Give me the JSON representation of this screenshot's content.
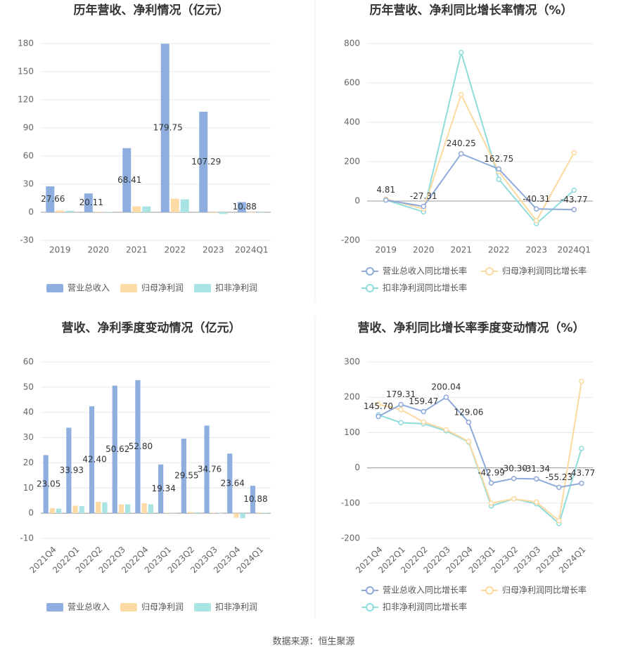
{
  "chart_data": [
    {
      "type": "bar",
      "title": "历年营收、净利情况（亿元）",
      "categories": [
        "2019",
        "2020",
        "2021",
        "2022",
        "2023",
        "2024Q1"
      ],
      "series": [
        {
          "name": "营业总收入",
          "color": "#8eaedf",
          "values": [
            27.66,
            20.11,
            68.41,
            179.75,
            107.29,
            10.88
          ]
        },
        {
          "name": "归母净利润",
          "color": "#fddba6",
          "values": [
            1.8,
            0.6,
            6.3,
            14.6,
            -0.8,
            -0.5
          ]
        },
        {
          "name": "扣非净利润",
          "color": "#a9e3e3",
          "values": [
            1.6,
            0.4,
            6.2,
            13.8,
            -1.8,
            -0.6
          ]
        }
      ],
      "ylim": [
        -30,
        180
      ],
      "yticks": [
        -30,
        0,
        30,
        60,
        90,
        120,
        150,
        180
      ],
      "grid": true
    },
    {
      "type": "line",
      "title": "历年营收、净利同比增长率情况（%）",
      "categories": [
        "2019",
        "2020",
        "2021",
        "2022",
        "2023",
        "2024Q1"
      ],
      "series": [
        {
          "name": "营业总收入同比增长率",
          "color": "#8eaadb",
          "values": [
            4.81,
            -27.31,
            240.25,
            162.75,
            -40.31,
            -43.77
          ]
        },
        {
          "name": "归母净利润同比增长率",
          "color": "#fdd99f",
          "values": [
            10,
            -40,
            540,
            150,
            -100,
            245
          ]
        },
        {
          "name": "扣非净利润同比增长率",
          "color": "#90dcdc",
          "values": [
            5,
            -55,
            755,
            110,
            -115,
            55
          ]
        }
      ],
      "ylim": [
        -200,
        800
      ],
      "yticks": [
        -200,
        0,
        200,
        400,
        600,
        800
      ],
      "grid": true
    },
    {
      "type": "bar",
      "title": "营收、净利季度变动情况（亿元）",
      "categories": [
        "2021Q4",
        "2022Q1",
        "2022Q2",
        "2022Q3",
        "2022Q4",
        "2023Q1",
        "2023Q2",
        "2023Q3",
        "2023Q4",
        "2024Q1"
      ],
      "series": [
        {
          "name": "营业总收入",
          "color": "#8eaedf",
          "values": [
            23.05,
            33.93,
            42.4,
            50.62,
            52.8,
            19.34,
            29.55,
            34.76,
            23.64,
            10.88
          ],
          "value_labels": [
            "23.05",
            "33.93",
            "42.40",
            "50.62",
            "52.80",
            "19.34",
            "29.55",
            "34.76",
            "23.64",
            "10.88"
          ]
        },
        {
          "name": "归母净利润",
          "color": "#fddba6",
          "values": [
            2.0,
            3.0,
            4.5,
            3.5,
            4.0,
            0.2,
            0.5,
            0.2,
            -1.8,
            0.3
          ]
        },
        {
          "name": "扣非净利润",
          "color": "#a9e3e3",
          "values": [
            1.8,
            2.8,
            4.3,
            3.5,
            3.5,
            0.1,
            0.3,
            0.1,
            -2.0,
            0.2
          ]
        }
      ],
      "ylim": [
        -10,
        60
      ],
      "yticks": [
        -10,
        0,
        10,
        20,
        30,
        40,
        50,
        60
      ],
      "grid": true
    },
    {
      "type": "line",
      "title": "营收、净利同比增长率季度变动情况（%）",
      "categories": [
        "2021Q4",
        "2022Q1",
        "2022Q2",
        "2022Q3",
        "2022Q4",
        "2023Q1",
        "2023Q2",
        "2023Q3",
        "2023Q4",
        "2024Q1"
      ],
      "series": [
        {
          "name": "营业总收入同比增长率",
          "color": "#8eaadb",
          "values": [
            145.7,
            179.31,
            159.47,
            200.04,
            129.06,
            -42.99,
            -30.3,
            -31.34,
            -55.23,
            -43.77
          ],
          "value_labels": [
            "145.70",
            "179.31",
            "159.47",
            "200.04",
            "129.06",
            "-42.99",
            "-30.30",
            "-31.34",
            "-55.23",
            "-43.77"
          ]
        },
        {
          "name": "归母净利润同比增长率",
          "color": "#fdd99f",
          "values": [
            180,
            165,
            130,
            108,
            75,
            -100,
            -88,
            -97,
            -150,
            245
          ]
        },
        {
          "name": "扣非净利润同比增长率",
          "color": "#90dcdc",
          "values": [
            150,
            128,
            125,
            105,
            73,
            -108,
            -88,
            -102,
            -158,
            55
          ]
        }
      ],
      "ylim": [
        -200,
        300
      ],
      "yticks": [
        -200,
        -100,
        0,
        100,
        200,
        300
      ],
      "grid": true
    }
  ],
  "footer": "数据来源：恒生聚源"
}
